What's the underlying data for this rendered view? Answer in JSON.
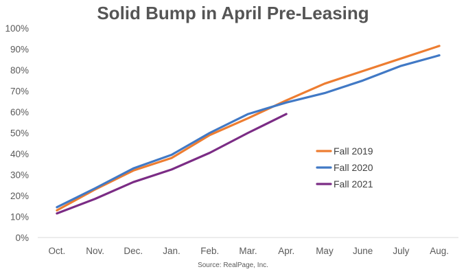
{
  "chart_data": {
    "type": "line",
    "title": "Solid Bump in April Pre-Leasing",
    "source": "Source: RealPage, Inc.",
    "categories": [
      "Oct.",
      "Nov.",
      "Dec.",
      "Jan.",
      "Feb.",
      "Mar.",
      "Apr.",
      "May",
      "June",
      "July",
      "Aug."
    ],
    "ylim": [
      0,
      100
    ],
    "yticks": [
      0,
      10,
      20,
      30,
      40,
      50,
      60,
      70,
      80,
      90,
      100
    ],
    "ytick_labels": [
      "0%",
      "10%",
      "20%",
      "30%",
      "40%",
      "50%",
      "60%",
      "70%",
      "80%",
      "90%",
      "100%"
    ],
    "grid": false,
    "legend_position": "right",
    "series": [
      {
        "name": "Fall 2019",
        "color": "#ED7D31",
        "values": [
          13,
          23,
          32,
          38,
          49,
          57,
          65.5,
          73.5,
          79.5,
          85.5,
          91.5
        ]
      },
      {
        "name": "Fall 2020",
        "color": "#4179C5",
        "values": [
          14.5,
          23.5,
          33,
          39.5,
          50,
          59,
          64.5,
          69,
          75,
          82,
          87
        ]
      },
      {
        "name": "Fall 2021",
        "color": "#7B2C85",
        "values": [
          11.5,
          18.5,
          26.5,
          32.5,
          40.5,
          50,
          59,
          null,
          null,
          null,
          null
        ]
      }
    ]
  }
}
